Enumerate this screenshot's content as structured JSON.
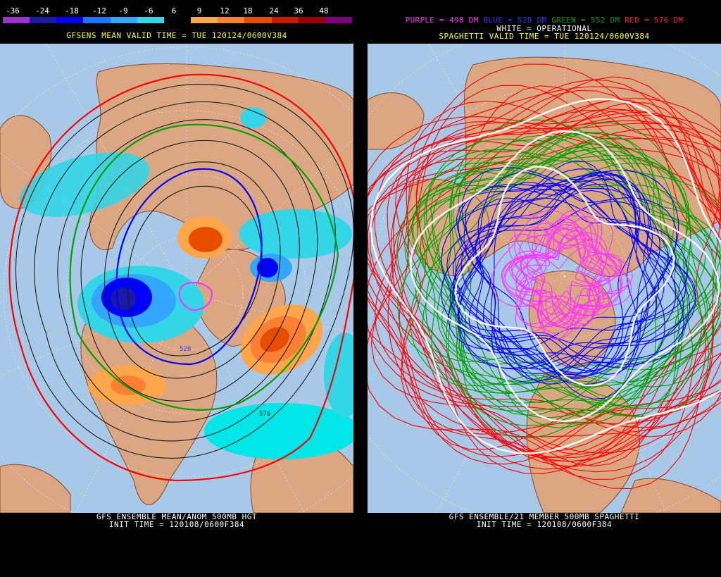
{
  "left": {
    "scale_labels": [
      "-36",
      "-24",
      "-18",
      "-12",
      "-9",
      "-6",
      "6",
      "9",
      "12",
      "18",
      "24",
      "36",
      "48"
    ],
    "scale_colors": [
      "#9933cc",
      "#1a1aa6",
      "#0000ff",
      "#1e78ff",
      "#33a6ff",
      "#33d6e6",
      "#000000",
      "#ffa64d",
      "#ff8033",
      "#e64d00",
      "#cc1a00",
      "#990000",
      "#800080"
    ],
    "valid_time": "GFSENS MEAN VALID TIME = TUE 120124/0600V384",
    "footer_line1": "GFS ENSEMBLE MEAN/ANOM 500MB HGT",
    "footer_line2": "INIT TIME = 120108/0600F384",
    "contour_labels": [
      "528",
      "576"
    ]
  },
  "right": {
    "legend": {
      "purple": "PURPLE = 498 DM",
      "blue": "BLUE = 528 DM",
      "green": "GREEN = 552 DM",
      "red": "RED = 576 DM",
      "white": "WHITE = OPERATIONAL"
    },
    "valid_time": "SPAGHETTI VALID TIME = TUE 120124/0600V384",
    "footer_line1": "GFS ENSEMBLE/21 MEMBER 500MB SPAGHETTI",
    "footer_line2": "INIT TIME = 120108/0600F384"
  },
  "colors": {
    "ocean": "#a8c8e8",
    "land": "#dba682",
    "coast": "#8b4a2b",
    "purple_line": "#ff33ff",
    "blue_line": "#0000ff",
    "green_line": "#00a000",
    "red_line": "#ff0000",
    "white_line": "#ffffff"
  }
}
